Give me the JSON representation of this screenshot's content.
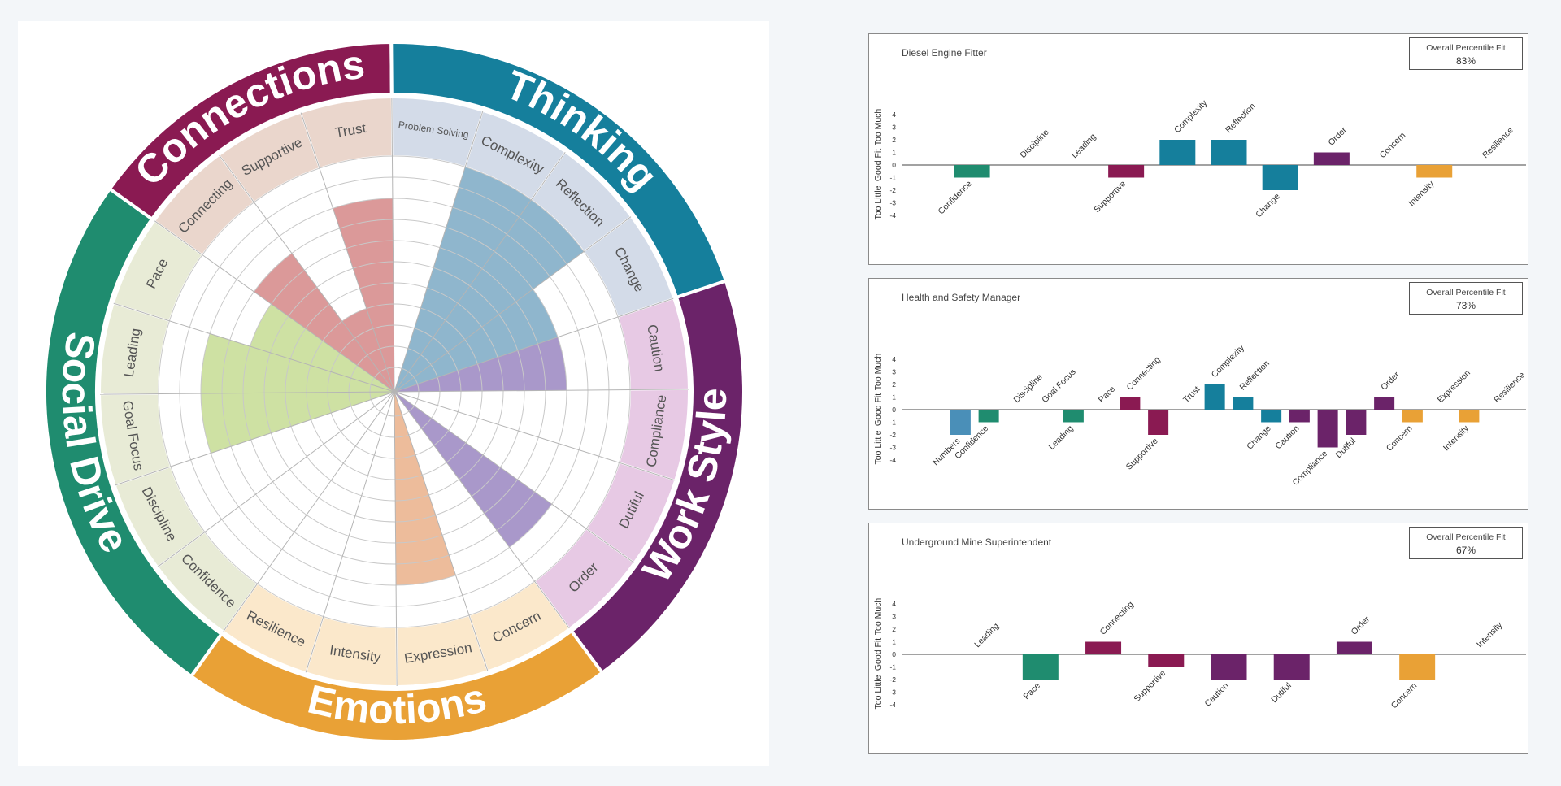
{
  "chart_data": [
    {
      "type": "radial",
      "groups": [
        {
          "name": "Social Drive",
          "color": "#1f8c6f",
          "light": "#e8ebd6",
          "fill": "#c5dc93",
          "scales": [
            {
              "label": "Confidence",
              "value": 0
            },
            {
              "label": "Discipline",
              "value": 0
            },
            {
              "label": "Goal Focus",
              "value": 8
            },
            {
              "label": "Leading",
              "value": 8
            },
            {
              "label": "Pace",
              "value": 6
            }
          ]
        },
        {
          "name": "Connections",
          "color": "#8a1a52",
          "light": "#ead6cc",
          "fill": "#d58787",
          "scales": [
            {
              "label": "Connecting",
              "value": 7
            },
            {
              "label": "Supportive",
              "value": 3
            },
            {
              "label": "Trust",
              "value": 8
            }
          ]
        },
        {
          "name": "Thinking",
          "color": "#157f9c",
          "light": "#d3dbe8",
          "fill": "#7ba9c4",
          "scales": [
            {
              "label": "Problem Solving",
              "value": 0
            },
            {
              "label": "Complexity",
              "value": 10
            },
            {
              "label": "Reflection",
              "value": 10
            },
            {
              "label": "Change",
              "value": 7
            }
          ]
        },
        {
          "name": "Work Style",
          "color": "#6b2369",
          "light": "#e7c9e4",
          "fill": "#9a86c1",
          "scales": [
            {
              "label": "Caution",
              "value": 7
            },
            {
              "label": "Compliance",
              "value": 0
            },
            {
              "label": "Dutiful",
              "value": 0
            },
            {
              "label": "Order",
              "value": 8
            }
          ]
        },
        {
          "name": "Emotions",
          "color": "#e9a136",
          "light": "#fbe8cb",
          "fill": "#eab08a",
          "scales": [
            {
              "label": "Concern",
              "value": 0
            },
            {
              "label": "Expression",
              "value": 8
            },
            {
              "label": "Intensity",
              "value": 0
            },
            {
              "label": "Resilience",
              "value": 0
            }
          ]
        }
      ]
    },
    {
      "type": "bar",
      "title": "Diesel Engine Fitter",
      "fit_label": "Overall Percentile Fit",
      "fit_value": "83%",
      "ylabels": [
        "Too Much",
        "Good Fit",
        "Too Little"
      ],
      "yticks": [
        4,
        3,
        2,
        1,
        0,
        -1,
        -2,
        -3,
        -4
      ],
      "categories": [
        {
          "label": "Confidence",
          "value": -1,
          "color": "#1f8c6f"
        },
        {
          "label": "Discipline",
          "value": 0,
          "color": "#1f8c6f"
        },
        {
          "label": "Leading",
          "value": 0,
          "color": "#1f8c6f"
        },
        {
          "label": "Supportive",
          "value": -1,
          "color": "#8a1a52"
        },
        {
          "label": "Complexity",
          "value": 2,
          "color": "#157f9c"
        },
        {
          "label": "Reflection",
          "value": 2,
          "color": "#157f9c"
        },
        {
          "label": "Change",
          "value": -2,
          "color": "#157f9c"
        },
        {
          "label": "Order",
          "value": 1,
          "color": "#6b2369"
        },
        {
          "label": "Concern",
          "value": 0,
          "color": "#e9a136"
        },
        {
          "label": "Intensity",
          "value": -1,
          "color": "#e9a136"
        },
        {
          "label": "Resilience",
          "value": 0,
          "color": "#e9a136"
        }
      ]
    },
    {
      "type": "bar",
      "title": "Health and Safety Manager",
      "fit_label": "Overall Percentile Fit",
      "fit_value": "73%",
      "ylabels": [
        "Too Much",
        "Good Fit",
        "Too Little"
      ],
      "yticks": [
        4,
        3,
        2,
        1,
        0,
        -1,
        -2,
        -3,
        -4
      ],
      "categories": [
        {
          "label": "Numbers",
          "value": -2,
          "color": "#4a8fb8"
        },
        {
          "label": "Confidence",
          "value": -1,
          "color": "#1f8c6f"
        },
        {
          "label": "Discipline",
          "value": 0,
          "color": "#1f8c6f"
        },
        {
          "label": "Goal Focus",
          "value": 0,
          "color": "#1f8c6f"
        },
        {
          "label": "Leading",
          "value": -1,
          "color": "#1f8c6f"
        },
        {
          "label": "Pace",
          "value": 0,
          "color": "#1f8c6f"
        },
        {
          "label": "Connecting",
          "value": 1,
          "color": "#8a1a52"
        },
        {
          "label": "Supportive",
          "value": -2,
          "color": "#8a1a52"
        },
        {
          "label": "Trust",
          "value": 0,
          "color": "#8a1a52"
        },
        {
          "label": "Complexity",
          "value": 2,
          "color": "#157f9c"
        },
        {
          "label": "Reflection",
          "value": 1,
          "color": "#157f9c"
        },
        {
          "label": "Change",
          "value": -1,
          "color": "#157f9c"
        },
        {
          "label": "Caution",
          "value": -1,
          "color": "#6b2369"
        },
        {
          "label": "Compliance",
          "value": -3,
          "color": "#6b2369"
        },
        {
          "label": "Dutiful",
          "value": -2,
          "color": "#6b2369"
        },
        {
          "label": "Order",
          "value": 1,
          "color": "#6b2369"
        },
        {
          "label": "Concern",
          "value": -1,
          "color": "#e9a136"
        },
        {
          "label": "Expression",
          "value": 0,
          "color": "#e9a136"
        },
        {
          "label": "Intensity",
          "value": -1,
          "color": "#e9a136"
        },
        {
          "label": "Resilience",
          "value": 0,
          "color": "#e9a136"
        }
      ]
    },
    {
      "type": "bar",
      "title": "Underground Mine Superintendent",
      "fit_label": "Overall Percentile Fit",
      "fit_value": "67%",
      "ylabels": [
        "Too Much",
        "Good Fit",
        "Too Little"
      ],
      "yticks": [
        4,
        3,
        2,
        1,
        0,
        -1,
        -2,
        -3,
        -4
      ],
      "categories": [
        {
          "label": "Leading",
          "value": 0,
          "color": "#1f8c6f"
        },
        {
          "label": "Pace",
          "value": -2,
          "color": "#1f8c6f"
        },
        {
          "label": "Connecting",
          "value": 1,
          "color": "#8a1a52"
        },
        {
          "label": "Supportive",
          "value": -1,
          "color": "#8a1a52"
        },
        {
          "label": "Caution",
          "value": -2,
          "color": "#6b2369"
        },
        {
          "label": "Dutiful",
          "value": -2,
          "color": "#6b2369"
        },
        {
          "label": "Order",
          "value": 1,
          "color": "#6b2369"
        },
        {
          "label": "Concern",
          "value": -2,
          "color": "#e9a136"
        },
        {
          "label": "Intensity",
          "value": 0,
          "color": "#e9a136"
        }
      ]
    }
  ]
}
